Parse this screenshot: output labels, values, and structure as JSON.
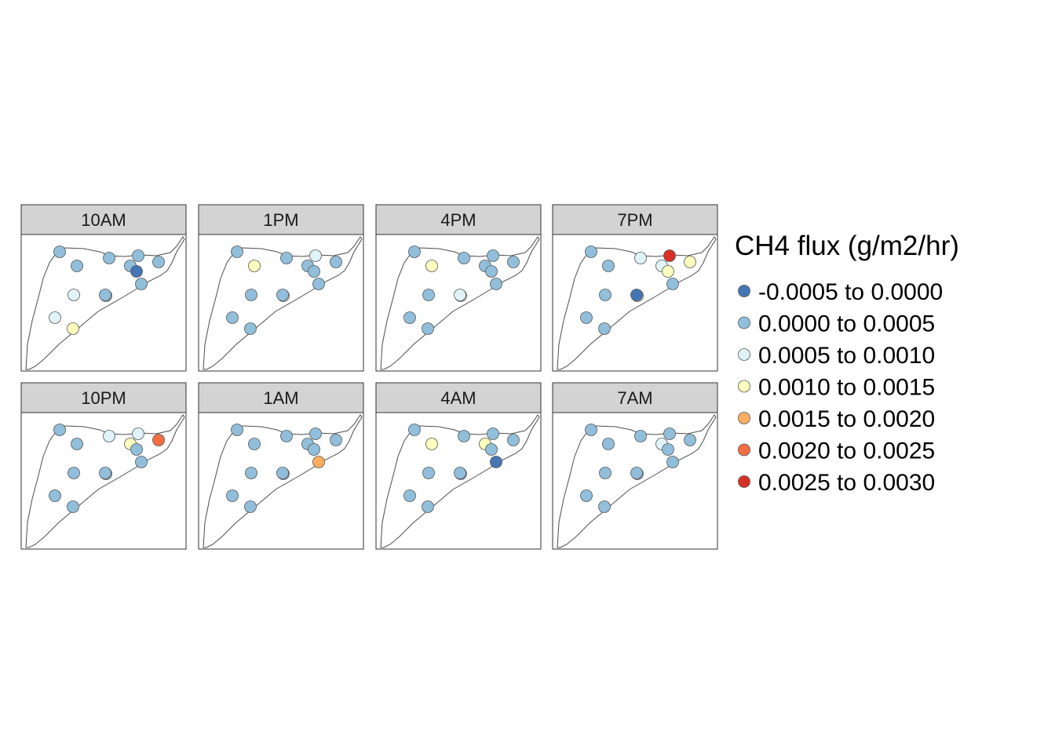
{
  "legend": {
    "title": "CH4 flux (g/m2/hr)",
    "classes": [
      {
        "label": "-0.0005 to 0.0000",
        "color": "#4575b4"
      },
      {
        "label": "0.0000 to 0.0005",
        "color": "#91bfdb"
      },
      {
        "label": "0.0005 to 0.0010",
        "color": "#e0f3f8"
      },
      {
        "label": "0.0010 to 0.0015",
        "color": "#ffffbf"
      },
      {
        "label": "0.0015 to 0.0020",
        "color": "#fdae61"
      },
      {
        "label": "0.0020 to 0.0025",
        "color": "#f46d43"
      },
      {
        "label": "0.0025 to 0.0030",
        "color": "#d73027"
      }
    ]
  },
  "panels": [
    {
      "label": "10AM",
      "station_classes": [
        1,
        1,
        1,
        1,
        1,
        1,
        0,
        1,
        2,
        2,
        3,
        1,
        1
      ]
    },
    {
      "label": "1PM",
      "station_classes": [
        1,
        3,
        1,
        2,
        1,
        1,
        1,
        1,
        1,
        1,
        1,
        2,
        1
      ]
    },
    {
      "label": "4PM",
      "station_classes": [
        1,
        3,
        1,
        1,
        1,
        1,
        1,
        1,
        1,
        1,
        1,
        2,
        2
      ]
    },
    {
      "label": "7PM",
      "station_classes": [
        1,
        1,
        2,
        6,
        3,
        2,
        3,
        1,
        1,
        1,
        1,
        2,
        0
      ]
    },
    {
      "label": "10PM",
      "station_classes": [
        1,
        1,
        2,
        2,
        5,
        3,
        1,
        1,
        1,
        1,
        1,
        1,
        1
      ]
    },
    {
      "label": "1AM",
      "station_classes": [
        1,
        1,
        1,
        1,
        1,
        1,
        1,
        4,
        1,
        1,
        1,
        1,
        1
      ]
    },
    {
      "label": "4AM",
      "station_classes": [
        1,
        3,
        1,
        1,
        1,
        3,
        1,
        0,
        1,
        1,
        1,
        1,
        1
      ]
    },
    {
      "label": "7AM",
      "station_classes": [
        1,
        1,
        1,
        1,
        1,
        2,
        1,
        1,
        1,
        1,
        1,
        1,
        1
      ]
    }
  ]
}
